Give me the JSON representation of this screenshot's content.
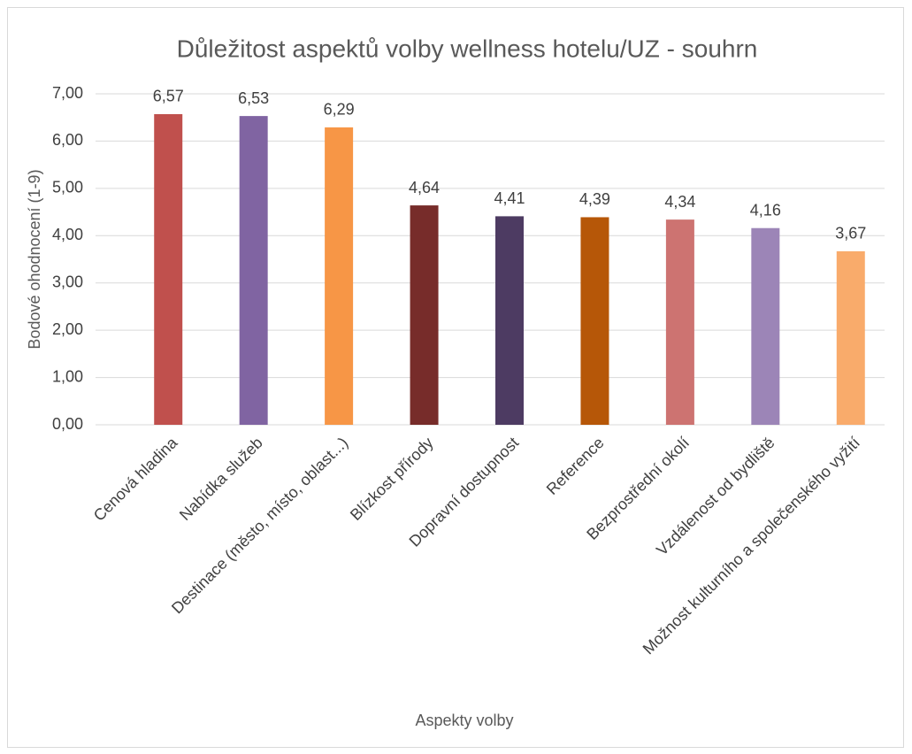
{
  "chart_data": {
    "type": "bar",
    "title": "Důležitost aspektů volby wellness hotelu/UZ - souhrn",
    "xlabel": "Aspekty volby",
    "ylabel": "Bodové ohodnocení (1-9)",
    "categories": [
      "Cenová hladina",
      "Nabídka služeb",
      "Destinace (město, místo, oblast...)",
      "Blízkost přírody",
      "Dopravní dostupnost",
      "Reference",
      "Bezprostřední okolí",
      "Vzdálenost od bydliště",
      "Možnost kulturního a společenského vyžití"
    ],
    "values": [
      6.57,
      6.53,
      6.29,
      4.64,
      4.41,
      4.39,
      4.34,
      4.16,
      3.67
    ],
    "value_labels": [
      "6,57",
      "6,53",
      "6,29",
      "4,64",
      "4,41",
      "4,39",
      "4,34",
      "4,16",
      "3,67"
    ],
    "colors": [
      "#c0504d",
      "#8064a2",
      "#f79646",
      "#772c2a",
      "#4d3b62",
      "#b65708",
      "#cd7371",
      "#9c85b7",
      "#f9ab6b"
    ],
    "ylim": [
      0,
      7
    ],
    "yticks": [
      {
        "value": 0,
        "label": "0,00"
      },
      {
        "value": 1,
        "label": "1,00"
      },
      {
        "value": 2,
        "label": "2,00"
      },
      {
        "value": 3,
        "label": "3,00"
      },
      {
        "value": 4,
        "label": "4,00"
      },
      {
        "value": 5,
        "label": "5,00"
      },
      {
        "value": 6,
        "label": "6,00"
      },
      {
        "value": 7,
        "label": "7,00"
      }
    ],
    "grid": true
  }
}
